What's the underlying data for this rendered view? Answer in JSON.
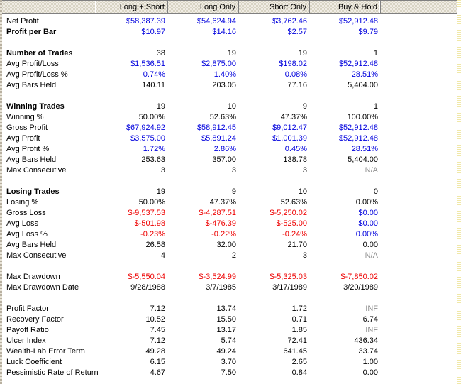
{
  "header": {
    "columns": [
      "",
      "Long + Short",
      "Long Only",
      "Short Only",
      "Buy & Hold",
      ""
    ]
  },
  "colors": {
    "positive": "#0000dd",
    "negative": "#ee0000",
    "neutral": "#000000",
    "na": "#909090"
  },
  "rows": [
    {
      "label": "Net Profit",
      "bold": false,
      "values": [
        "$58,387.39",
        "$54,624.94",
        "$3,762.46",
        "$52,912.48"
      ],
      "colors": [
        "blue",
        "blue",
        "blue",
        "blue"
      ]
    },
    {
      "label": "Profit per Bar",
      "bold": true,
      "values": [
        "$10.97",
        "$14.16",
        "$2.57",
        "$9.79"
      ],
      "colors": [
        "blue",
        "blue",
        "blue",
        "blue"
      ]
    },
    {
      "gap": true
    },
    {
      "label": "Number of Trades",
      "bold": true,
      "values": [
        "38",
        "19",
        "19",
        "1"
      ],
      "colors": [
        "black",
        "black",
        "black",
        "black"
      ]
    },
    {
      "label": "Avg Profit/Loss",
      "bold": false,
      "values": [
        "$1,536.51",
        "$2,875.00",
        "$198.02",
        "$52,912.48"
      ],
      "colors": [
        "blue",
        "blue",
        "blue",
        "blue"
      ]
    },
    {
      "label": "Avg Profit/Loss %",
      "bold": false,
      "values": [
        "0.74%",
        "1.40%",
        "0.08%",
        "28.51%"
      ],
      "colors": [
        "blue",
        "blue",
        "blue",
        "blue"
      ]
    },
    {
      "label": "Avg Bars Held",
      "bold": false,
      "values": [
        "140.11",
        "203.05",
        "77.16",
        "5,404.00"
      ],
      "colors": [
        "black",
        "black",
        "black",
        "black"
      ]
    },
    {
      "gap": true
    },
    {
      "label": "Winning Trades",
      "bold": true,
      "values": [
        "19",
        "10",
        "9",
        "1"
      ],
      "colors": [
        "black",
        "black",
        "black",
        "black"
      ]
    },
    {
      "label": "Winning %",
      "bold": false,
      "values": [
        "50.00%",
        "52.63%",
        "47.37%",
        "100.00%"
      ],
      "colors": [
        "black",
        "black",
        "black",
        "black"
      ]
    },
    {
      "label": "Gross Profit",
      "bold": false,
      "values": [
        "$67,924.92",
        "$58,912.45",
        "$9,012.47",
        "$52,912.48"
      ],
      "colors": [
        "blue",
        "blue",
        "blue",
        "blue"
      ]
    },
    {
      "label": "Avg Profit",
      "bold": false,
      "values": [
        "$3,575.00",
        "$5,891.24",
        "$1,001.39",
        "$52,912.48"
      ],
      "colors": [
        "blue",
        "blue",
        "blue",
        "blue"
      ]
    },
    {
      "label": "Avg Profit %",
      "bold": false,
      "values": [
        "1.72%",
        "2.86%",
        "0.45%",
        "28.51%"
      ],
      "colors": [
        "blue",
        "blue",
        "blue",
        "blue"
      ]
    },
    {
      "label": "Avg Bars Held",
      "bold": false,
      "values": [
        "253.63",
        "357.00",
        "138.78",
        "5,404.00"
      ],
      "colors": [
        "black",
        "black",
        "black",
        "black"
      ]
    },
    {
      "label": "Max Consecutive",
      "bold": false,
      "values": [
        "3",
        "3",
        "3",
        "N/A"
      ],
      "colors": [
        "black",
        "black",
        "black",
        "gray"
      ]
    },
    {
      "gap": true
    },
    {
      "label": "Losing Trades",
      "bold": true,
      "values": [
        "19",
        "9",
        "10",
        "0"
      ],
      "colors": [
        "black",
        "black",
        "black",
        "black"
      ]
    },
    {
      "label": "Losing %",
      "bold": false,
      "values": [
        "50.00%",
        "47.37%",
        "52.63%",
        "0.00%"
      ],
      "colors": [
        "black",
        "black",
        "black",
        "black"
      ]
    },
    {
      "label": "Gross Loss",
      "bold": false,
      "values": [
        "$-9,537.53",
        "$-4,287.51",
        "$-5,250.02",
        "$0.00"
      ],
      "colors": [
        "red",
        "red",
        "red",
        "blue"
      ]
    },
    {
      "label": "Avg Loss",
      "bold": false,
      "values": [
        "$-501.98",
        "$-476.39",
        "$-525.00",
        "$0.00"
      ],
      "colors": [
        "red",
        "red",
        "red",
        "blue"
      ]
    },
    {
      "label": "Avg Loss %",
      "bold": false,
      "values": [
        "-0.23%",
        "-0.22%",
        "-0.24%",
        "0.00%"
      ],
      "colors": [
        "red",
        "red",
        "red",
        "blue"
      ]
    },
    {
      "label": "Avg Bars Held",
      "bold": false,
      "values": [
        "26.58",
        "32.00",
        "21.70",
        "0.00"
      ],
      "colors": [
        "black",
        "black",
        "black",
        "black"
      ]
    },
    {
      "label": "Max Consecutive",
      "bold": false,
      "values": [
        "4",
        "2",
        "3",
        "N/A"
      ],
      "colors": [
        "black",
        "black",
        "black",
        "gray"
      ]
    },
    {
      "gap": true
    },
    {
      "label": "Max Drawdown",
      "bold": false,
      "values": [
        "$-5,550.04",
        "$-3,524.99",
        "$-5,325.03",
        "$-7,850.02"
      ],
      "colors": [
        "red",
        "red",
        "red",
        "red"
      ]
    },
    {
      "label": "Max Drawdown Date",
      "bold": false,
      "values": [
        "9/28/1988",
        "3/7/1985",
        "3/17/1989",
        "3/20/1989"
      ],
      "colors": [
        "black",
        "black",
        "black",
        "black"
      ]
    },
    {
      "gap": true
    },
    {
      "label": "Profit Factor",
      "bold": false,
      "values": [
        "7.12",
        "13.74",
        "1.72",
        "INF"
      ],
      "colors": [
        "black",
        "black",
        "black",
        "gray"
      ]
    },
    {
      "label": "Recovery Factor",
      "bold": false,
      "values": [
        "10.52",
        "15.50",
        "0.71",
        "6.74"
      ],
      "colors": [
        "black",
        "black",
        "black",
        "black"
      ]
    },
    {
      "label": "Payoff Ratio",
      "bold": false,
      "values": [
        "7.45",
        "13.17",
        "1.85",
        "INF"
      ],
      "colors": [
        "black",
        "black",
        "black",
        "gray"
      ]
    },
    {
      "label": "Ulcer Index",
      "bold": false,
      "values": [
        "7.12",
        "5.74",
        "72.41",
        "436.34"
      ],
      "colors": [
        "black",
        "black",
        "black",
        "black"
      ]
    },
    {
      "label": "Wealth-Lab Error Term",
      "bold": false,
      "values": [
        "49.28",
        "49.24",
        "641.45",
        "33.74"
      ],
      "colors": [
        "black",
        "black",
        "black",
        "black"
      ]
    },
    {
      "label": "Luck Coefficient",
      "bold": false,
      "values": [
        "6.15",
        "3.70",
        "2.65",
        "1.00"
      ],
      "colors": [
        "black",
        "black",
        "black",
        "black"
      ]
    },
    {
      "label": "Pessimistic Rate of Return",
      "bold": false,
      "values": [
        "4.67",
        "7.50",
        "0.84",
        "0.00"
      ],
      "colors": [
        "black",
        "black",
        "black",
        "black"
      ]
    }
  ]
}
